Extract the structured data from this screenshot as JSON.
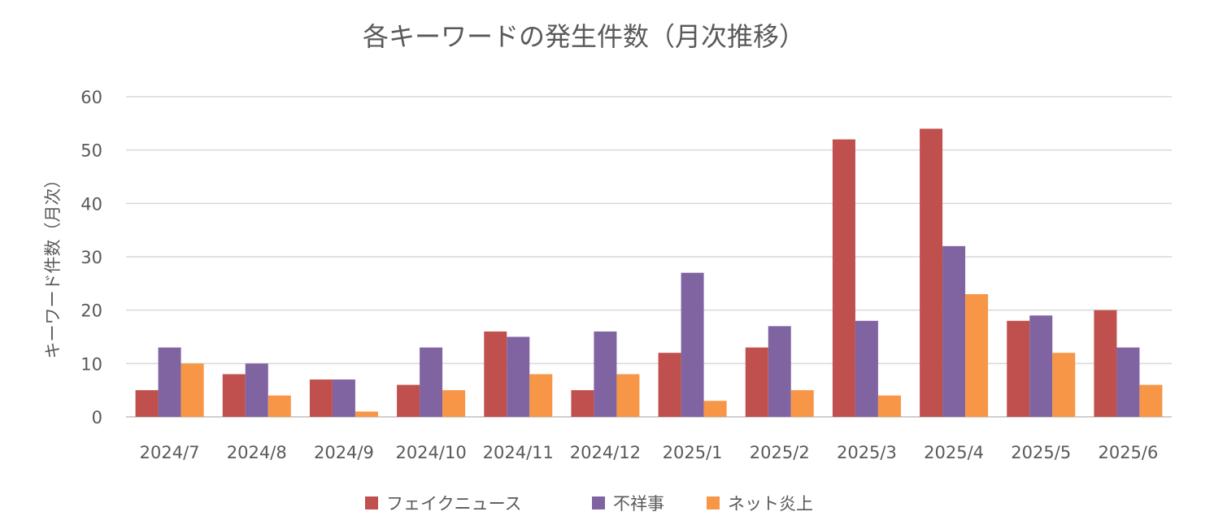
{
  "chart_data": {
    "type": "bar",
    "title": "各キーワードの発生件数（月次推移）",
    "xlabel": "",
    "ylabel": "キーワード件数（月次）",
    "ylim": [
      0,
      60
    ],
    "yticks": [
      0,
      10,
      20,
      30,
      40,
      50,
      60
    ],
    "grid": true,
    "legend_position": "bottom",
    "categories": [
      "2024/7",
      "2024/8",
      "2024/9",
      "2024/10",
      "2024/11",
      "2024/12",
      "2025/1",
      "2025/2",
      "2025/3",
      "2025/4",
      "2025/5",
      "2025/6"
    ],
    "series": [
      {
        "name": "フェイクニュース",
        "color": "#C0504D",
        "values": [
          5,
          8,
          7,
          6,
          16,
          5,
          12,
          13,
          52,
          54,
          18,
          20
        ]
      },
      {
        "name": "不祥事",
        "color": "#8064A2",
        "values": [
          13,
          10,
          7,
          13,
          15,
          16,
          27,
          17,
          18,
          32,
          19,
          13
        ]
      },
      {
        "name": "ネット炎上",
        "color": "#F79646",
        "values": [
          10,
          4,
          1,
          5,
          8,
          8,
          3,
          5,
          4,
          23,
          12,
          6
        ]
      }
    ]
  }
}
